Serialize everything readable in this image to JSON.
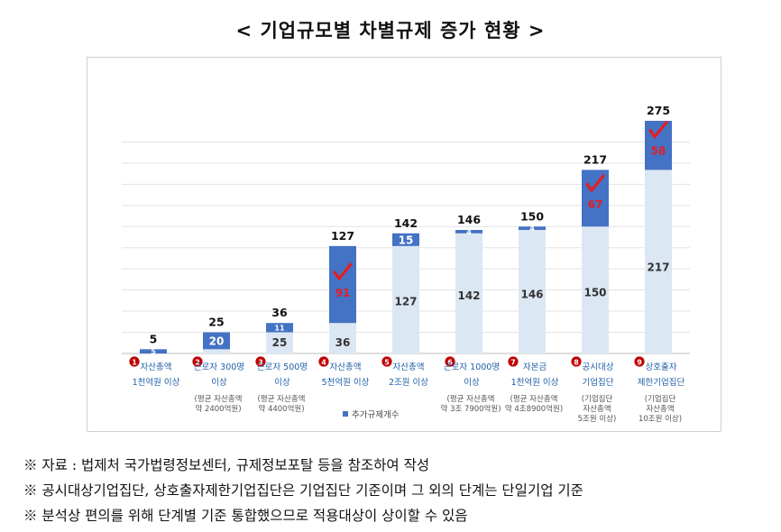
{
  "title": "< 기업규모별 차별규제 증가 현황 >",
  "colors": {
    "base": "#dce7f4",
    "added": "#4472c4",
    "check": "#e31e24",
    "badge": "#c00000",
    "label_blue": "#1f5fa8"
  },
  "chart_data": {
    "type": "bar",
    "stacked": true,
    "categories": [
      {
        "num": "1",
        "lines": [
          "자산총액",
          "1천억원 이상"
        ],
        "sub": []
      },
      {
        "num": "2",
        "lines": [
          "근로자 300명",
          "이상"
        ],
        "sub": [
          "(평균 자산총액",
          "약 2400억원)"
        ]
      },
      {
        "num": "3",
        "lines": [
          "근로자 500명",
          "이상"
        ],
        "sub": [
          "(평균 자산총액",
          "약 4400억원)"
        ]
      },
      {
        "num": "4",
        "lines": [
          "자산총액",
          "5천억원 이상"
        ],
        "sub": []
      },
      {
        "num": "5",
        "lines": [
          "자산총액",
          "2조원 이상"
        ],
        "sub": []
      },
      {
        "num": "6",
        "lines": [
          "근로자 1000명",
          "이상"
        ],
        "sub": [
          "(평균 자산총액",
          "약 3조 7900억원)"
        ]
      },
      {
        "num": "7",
        "lines": [
          "자본금",
          "1천억원 이상"
        ],
        "sub": [
          "(평균 자산총액",
          "약 4조8900억원)"
        ]
      },
      {
        "num": "8",
        "lines": [
          "공시대상",
          "기업집단"
        ],
        "sub": [
          "(기업집단",
          "자산총액",
          "5조원 이상)"
        ]
      },
      {
        "num": "9",
        "lines": [
          "상호출자",
          "제한기업집단"
        ],
        "sub": [
          "(기업집단",
          "자산총액",
          "10조원 이상)"
        ]
      }
    ],
    "series": [
      {
        "values": [
          0,
          5,
          25,
          36,
          127,
          142,
          146,
          150,
          217
        ]
      },
      {
        "name": "추가규제개수",
        "values": [
          5,
          20,
          11,
          91,
          15,
          4,
          4,
          67,
          58
        ]
      }
    ],
    "totals": [
      5,
      25,
      36,
      127,
      142,
      146,
      150,
      217,
      275
    ],
    "base_labels": [
      "",
      "5",
      "25",
      "36",
      "127",
      "142",
      "146",
      "150",
      "217"
    ],
    "added_labels": [
      "5",
      "20",
      "11",
      "91",
      "15",
      "4",
      "4",
      "67",
      "58"
    ],
    "highlighted": [
      3,
      7,
      8
    ],
    "ylim": [
      0,
      275
    ],
    "grid": true,
    "legend": "bottom-center"
  },
  "notes": [
    "※ 자료 : 법제처 국가법령정보센터, 규제정보포탈 등을 참조하여 작성",
    "※ 공시대상기업집단, 상호출자제한기업집단은 기업집단 기준이며 그 외의 단계는 단일기업 기준",
    "※ 분석상 편의를 위해 단계별 기준 통합했으므로 적용대상이 상이할 수 있음"
  ]
}
